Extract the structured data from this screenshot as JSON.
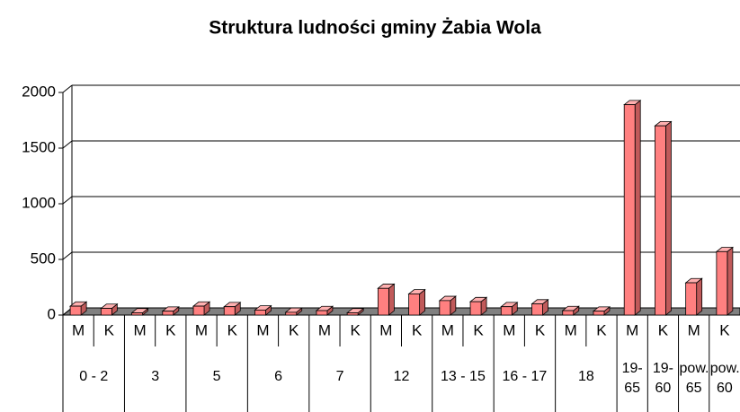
{
  "chart_data": {
    "type": "bar3d",
    "title": "Struktura ludności gminy Żabia Wola",
    "groups": [
      {
        "label": "0 - 2",
        "categories": [
          "M",
          "K"
        ]
      },
      {
        "label": "3",
        "categories": [
          "M",
          "K"
        ]
      },
      {
        "label": "5",
        "categories": [
          "M",
          "K"
        ]
      },
      {
        "label": "6",
        "categories": [
          "M",
          "K"
        ]
      },
      {
        "label": "7",
        "categories": [
          "M",
          "K"
        ]
      },
      {
        "label": "12",
        "categories": [
          "M",
          "K"
        ]
      },
      {
        "label": "13 - 15",
        "categories": [
          "M",
          "K"
        ]
      },
      {
        "label": "16 - 17",
        "categories": [
          "M",
          "K"
        ]
      },
      {
        "label": "18",
        "categories": [
          "M",
          "K"
        ]
      },
      {
        "label": "19-65",
        "categories": [
          "M"
        ]
      },
      {
        "label": "19-60",
        "categories": [
          "K"
        ]
      },
      {
        "label": "pow. 65",
        "categories": [
          "M"
        ]
      },
      {
        "label": "pow. 60",
        "categories": [
          "K"
        ]
      }
    ],
    "values": [
      80,
      60,
      20,
      35,
      80,
      75,
      45,
      25,
      40,
      20,
      240,
      190,
      130,
      120,
      75,
      100,
      40,
      35,
      1890,
      1700,
      290,
      570
    ],
    "color": "#ff8080",
    "ylim": [
      0,
      2000
    ],
    "yticks": [
      0,
      500,
      1000,
      1500,
      2000
    ],
    "grid": true
  }
}
